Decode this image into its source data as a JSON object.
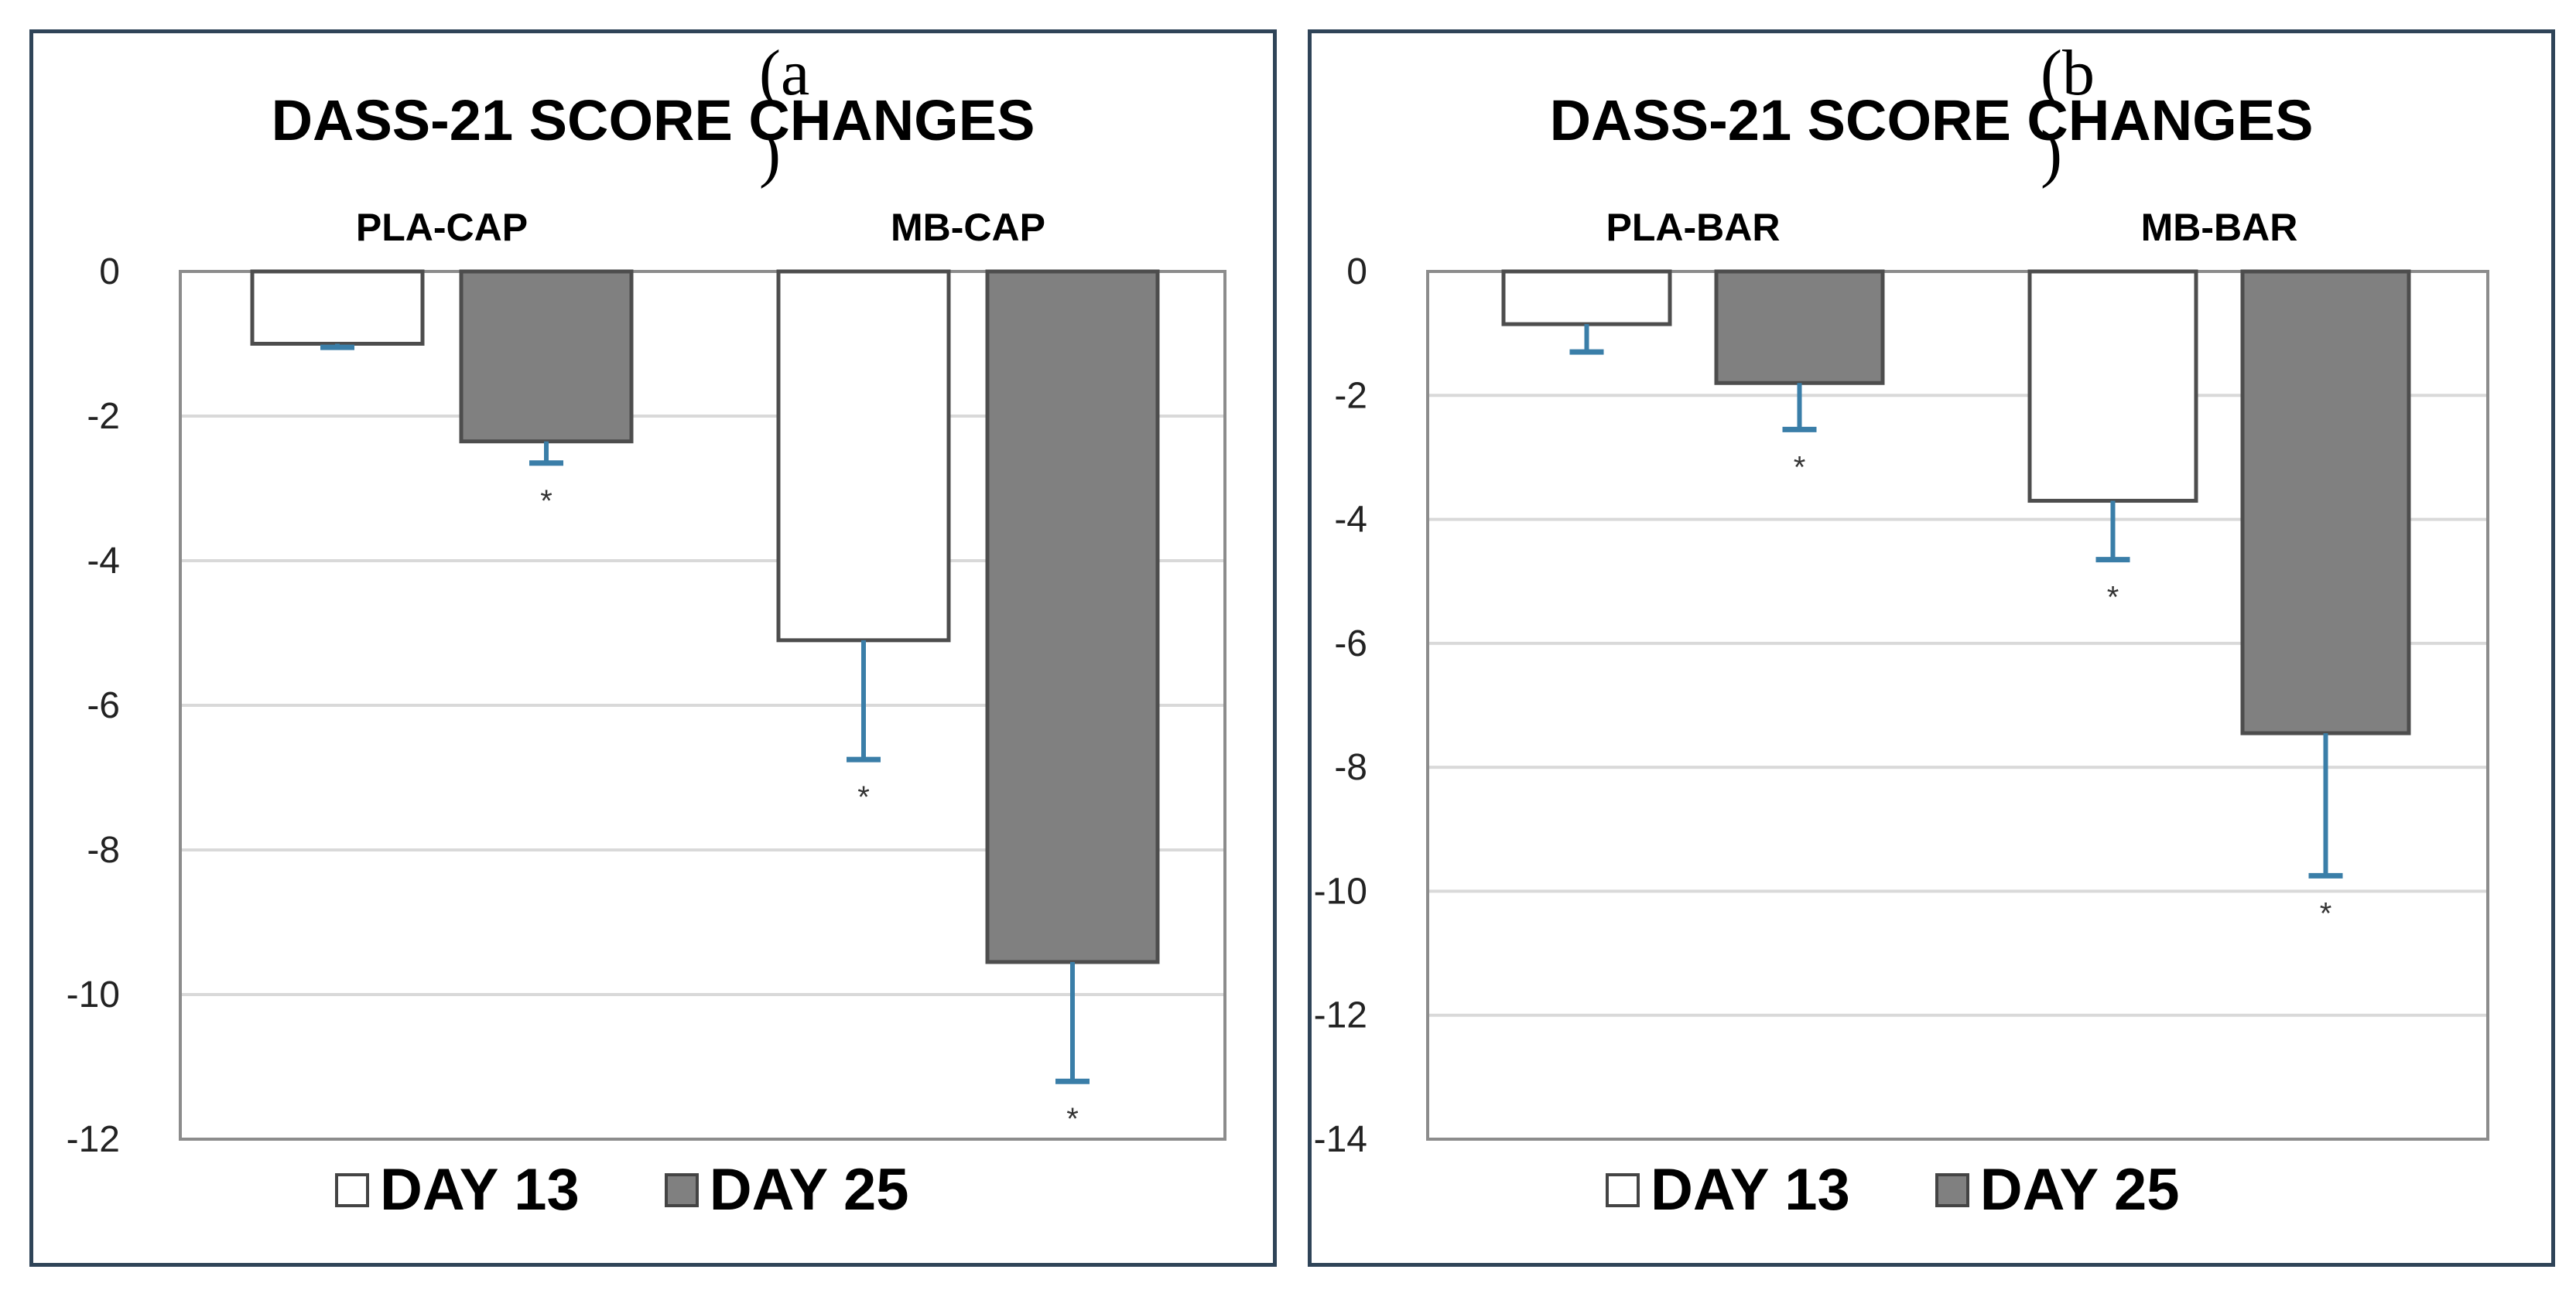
{
  "figure": {
    "legend": {
      "day13": "DAY 13",
      "day25": "DAY 25"
    },
    "colors": {
      "day13_fill": "#ffffff",
      "day25_fill": "#808080",
      "error_bar": "#3a7ea8",
      "frame": "#2f4458"
    }
  },
  "chart_data": [
    {
      "type": "bar",
      "panel_label": [
        "(a",
        ")"
      ],
      "title": "DASS-21 SCORE CHANGES",
      "categories": [
        "PLA-CAP",
        "MB-CAP"
      ],
      "series": [
        {
          "name": "DAY 13",
          "values": [
            -1.0,
            -5.1
          ],
          "error": [
            0.05,
            1.65
          ],
          "significant": [
            false,
            true
          ]
        },
        {
          "name": "DAY 25",
          "values": [
            -2.35,
            -9.55
          ],
          "error": [
            0.3,
            1.65
          ],
          "significant": [
            true,
            true
          ]
        }
      ],
      "ylim": [
        -12,
        0
      ],
      "yticks": [
        0,
        -2,
        -4,
        -6,
        -8,
        -10,
        -12
      ],
      "significance_marker": "*",
      "legend_position": "bottom"
    },
    {
      "type": "bar",
      "panel_label": [
        "(b",
        ")"
      ],
      "title": "DASS-21 SCORE CHANGES",
      "categories": [
        "PLA-BAR",
        "MB-BAR"
      ],
      "series": [
        {
          "name": "DAY 13",
          "values": [
            -0.85,
            -3.7
          ],
          "error": [
            0.45,
            0.95
          ],
          "significant": [
            false,
            true
          ]
        },
        {
          "name": "DAY 25",
          "values": [
            -1.8,
            -7.45
          ],
          "error": [
            0.75,
            2.3
          ],
          "significant": [
            true,
            true
          ]
        }
      ],
      "ylim": [
        -14,
        0
      ],
      "yticks": [
        0,
        -2,
        -4,
        -6,
        -8,
        -10,
        -12,
        -14
      ],
      "significance_marker": "*",
      "legend_position": "bottom"
    }
  ]
}
